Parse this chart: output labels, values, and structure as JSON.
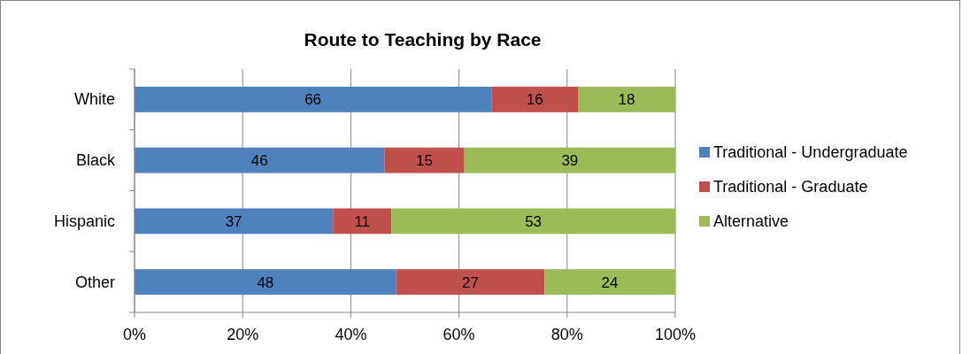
{
  "chart_data": {
    "type": "bar",
    "title": "Route to Teaching by Race",
    "orientation": "horizontal",
    "stacked": true,
    "categories": [
      "White",
      "Black",
      "Hispanic",
      "Other"
    ],
    "series": [
      {
        "name": "Traditional - Undergraduate",
        "color": "#4f81bd",
        "values": [
          66,
          46.2,
          36.7,
          48.4
        ],
        "value_labels": [
          "66",
          "46",
          "37",
          "48"
        ]
      },
      {
        "name": "Traditional - Graduate",
        "color": "#c0504d",
        "values": [
          16,
          14.8,
          10.8,
          27.4
        ],
        "value_labels": [
          "16",
          "15",
          "11",
          "27"
        ]
      },
      {
        "name": "Alternative",
        "color": "#9bbb59",
        "values": [
          18,
          39,
          52.5,
          24.2
        ],
        "value_labels": [
          "18",
          "39",
          "53",
          "24"
        ]
      }
    ],
    "xlim": [
      0,
      100
    ],
    "xticks": [
      {
        "value": 0,
        "label": "0%"
      },
      {
        "value": 20,
        "label": "20%"
      },
      {
        "value": 40,
        "label": "40%"
      },
      {
        "value": 60,
        "label": "60%"
      },
      {
        "value": 80,
        "label": "80%"
      },
      {
        "value": 100,
        "label": "100%"
      }
    ],
    "grid": "x",
    "legend": "right"
  }
}
